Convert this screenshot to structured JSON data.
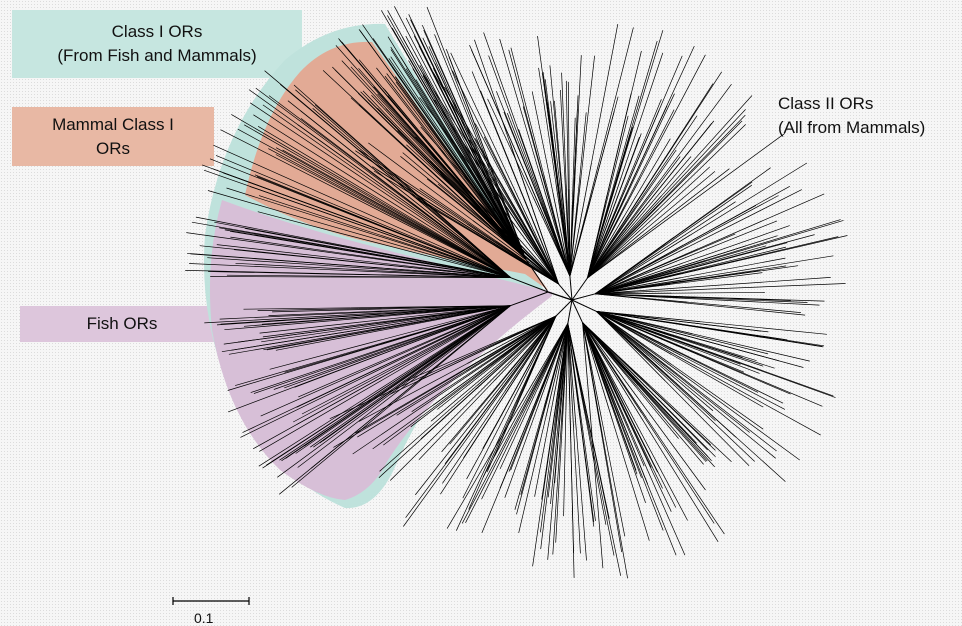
{
  "labels": {
    "class1_line1": "Class I ORs",
    "class1_line2": "(From Fish and Mammals)",
    "mammal_line1": "Mammal Class I",
    "mammal_line2": "ORs",
    "fish": "Fish ORs",
    "class2_line1": "Class II ORs",
    "class2_line2": "(All from Mammals)"
  },
  "scale_bar": {
    "label": "0.1",
    "value": 0.1
  },
  "colors": {
    "class1_fill": "#bfe2dc",
    "mammal_fill": "#e2aa95",
    "fish_fill": "#d7bfd7",
    "branch": "#000000"
  }
}
